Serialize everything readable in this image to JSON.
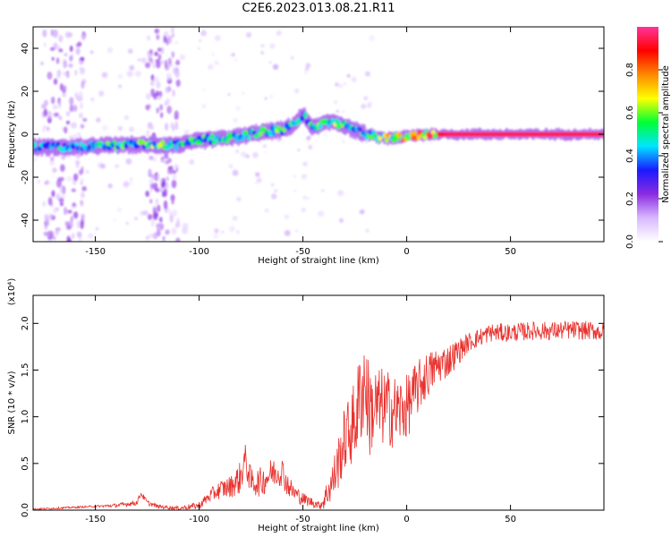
{
  "title": "C2E6.2023.013.08.21.R11",
  "chart_data": [
    {
      "type": "heatmap",
      "xlabel": "Height of straight line (km)",
      "ylabel": "Frequency (Hz)",
      "xlim": [
        -180,
        95
      ],
      "ylim": [
        -50,
        50
      ],
      "xticks": [
        -150,
        -100,
        -50,
        0,
        50
      ],
      "yticks": [
        -40,
        -20,
        0,
        20,
        40
      ],
      "colorbar": {
        "label": "Normalized spectral amplitude",
        "range": [
          0.0,
          1.0
        ],
        "ticks": [
          "0.0",
          "0.2",
          "0.4",
          "0.6",
          "0.8"
        ],
        "colormap": [
          "#ffffff",
          "#d8b8ff",
          "#8a2be2",
          "#1a1aff",
          "#00e5ff",
          "#00ff33",
          "#ffff00",
          "#ff8800",
          "#ff0000",
          "#ff3399"
        ]
      },
      "ridge": {
        "x": [
          -180,
          -160,
          -140,
          -120,
          -110,
          -100,
          -90,
          -80,
          -70,
          -60,
          -55,
          -50,
          -45,
          -40,
          -35,
          -30,
          -25,
          -20,
          -15,
          -10,
          0,
          10,
          20,
          50,
          95
        ],
        "y": [
          -6,
          -6,
          -5,
          -5,
          -5,
          -3,
          -2,
          -1,
          1,
          2,
          4,
          9,
          3,
          5,
          6,
          4,
          2,
          0,
          -1,
          -2,
          -1,
          0,
          0,
          0,
          0
        ],
        "amplitude": [
          0.45,
          0.5,
          0.55,
          0.6,
          0.5,
          0.55,
          0.5,
          0.5,
          0.55,
          0.6,
          0.5,
          0.45,
          0.55,
          0.6,
          0.65,
          0.5,
          0.45,
          0.5,
          0.6,
          0.7,
          0.8,
          0.85,
          0.95,
          0.95,
          0.95
        ]
      },
      "noise_bands": [
        {
          "x": [
            -175,
            -155
          ]
        },
        {
          "x": [
            -125,
            -110
          ]
        }
      ]
    },
    {
      "type": "line",
      "xlabel": "Height of straight line (km)",
      "ylabel": "SNR (10 * v/v)",
      "scale_label": "(x10⁴)",
      "xlim": [
        -180,
        95
      ],
      "ylim": [
        0,
        2.3
      ],
      "xticks": [
        -150,
        -100,
        -50,
        0,
        50
      ],
      "yticks": [
        0.0,
        0.5,
        1.0,
        1.5,
        2.0
      ],
      "ytick_labels": [
        "0.0",
        "0.5",
        "1.0",
        "1.5",
        "2.0"
      ],
      "series": [
        {
          "color": "#e8312d",
          "x": [
            -180,
            -170,
            -160,
            -150,
            -140,
            -130,
            -128,
            -125,
            -120,
            -110,
            -100,
            -95,
            -90,
            -85,
            -80,
            -78,
            -75,
            -70,
            -65,
            -60,
            -58,
            -55,
            -50,
            -45,
            -42,
            -40,
            -35,
            -30,
            -25,
            -22,
            -20,
            -18,
            -15,
            -10,
            -5,
            0,
            5,
            10,
            15,
            20,
            25,
            30,
            40,
            50,
            60,
            70,
            80,
            90,
            95
          ],
          "y": [
            0.01,
            0.02,
            0.03,
            0.04,
            0.05,
            0.08,
            0.18,
            0.08,
            0.04,
            0.02,
            0.05,
            0.15,
            0.22,
            0.25,
            0.35,
            0.55,
            0.3,
            0.3,
            0.4,
            0.42,
            0.3,
            0.2,
            0.12,
            0.08,
            0.05,
            0.1,
            0.35,
            0.75,
            0.95,
            1.25,
            1.4,
            1.05,
            1.1,
            1.1,
            1.05,
            1.1,
            1.3,
            1.45,
            1.55,
            1.6,
            1.7,
            1.8,
            1.9,
            1.9,
            1.92,
            1.92,
            1.93,
            1.92,
            1.9
          ],
          "noise_amp": [
            0.01,
            0.01,
            0.01,
            0.01,
            0.02,
            0.03,
            0.03,
            0.03,
            0.02,
            0.02,
            0.04,
            0.07,
            0.1,
            0.12,
            0.18,
            0.18,
            0.15,
            0.16,
            0.16,
            0.16,
            0.14,
            0.1,
            0.07,
            0.05,
            0.04,
            0.1,
            0.25,
            0.35,
            0.45,
            0.55,
            0.55,
            0.5,
            0.45,
            0.42,
            0.4,
            0.35,
            0.3,
            0.25,
            0.2,
            0.18,
            0.14,
            0.1,
            0.1,
            0.1,
            0.1,
            0.1,
            0.1,
            0.1,
            0.1
          ]
        }
      ]
    }
  ]
}
